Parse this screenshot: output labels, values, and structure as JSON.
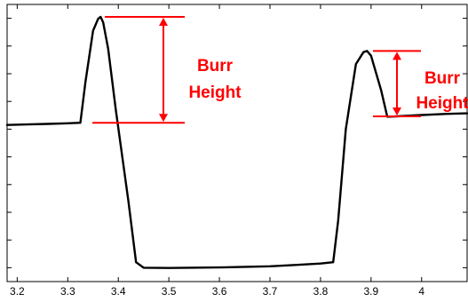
{
  "chart_data": {
    "type": "line",
    "title": "",
    "xlabel": "",
    "ylabel": "",
    "xlim": [
      3.18,
      4.09
    ],
    "ylim": [
      0,
      1
    ],
    "grid": false,
    "xticks": [
      {
        "value": 3.2,
        "label": "3.2"
      },
      {
        "value": 3.3,
        "label": "3.3"
      },
      {
        "value": 3.4,
        "label": "3.4"
      },
      {
        "value": 3.5,
        "label": "3.5"
      },
      {
        "value": 3.6,
        "label": "3.6"
      },
      {
        "value": 3.7,
        "label": "3.7"
      },
      {
        "value": 3.8,
        "label": "3.8"
      },
      {
        "value": 3.9,
        "label": "3.9"
      },
      {
        "value": 4.0,
        "label": "4"
      }
    ],
    "yticks": [
      0.05,
      0.15,
      0.25,
      0.35,
      0.45,
      0.55,
      0.65,
      0.75,
      0.85,
      0.95
    ],
    "series": [
      {
        "color": "#000000",
        "x": [
          3.18,
          3.22,
          3.26,
          3.3,
          3.325,
          3.335,
          3.35,
          3.36,
          3.365,
          3.37,
          3.38,
          3.395,
          3.42,
          3.435,
          3.45,
          3.5,
          3.6,
          3.7,
          3.75,
          3.8,
          3.825,
          3.835,
          3.85,
          3.87,
          3.885,
          3.892,
          3.9,
          3.92,
          3.932,
          3.95,
          4.0,
          4.05,
          4.09
        ],
        "y": [
          0.565,
          0.567,
          0.569,
          0.571,
          0.573,
          0.72,
          0.905,
          0.948,
          0.955,
          0.935,
          0.84,
          0.62,
          0.29,
          0.07,
          0.05,
          0.049,
          0.051,
          0.055,
          0.06,
          0.065,
          0.07,
          0.22,
          0.55,
          0.785,
          0.828,
          0.832,
          0.815,
          0.69,
          0.595,
          0.596,
          0.601,
          0.605,
          0.607
        ]
      }
    ],
    "annotations": [
      {
        "label_line1": "Burr",
        "label_line2": "Height",
        "peak_x": 3.365,
        "peak_y": 0.955,
        "base_y": 0.573,
        "color": "#ff0000"
      },
      {
        "label_line1": "Burr",
        "label_line2": "Height",
        "peak_x": 3.89,
        "peak_y": 0.832,
        "base_y": 0.596,
        "color": "#ff0000"
      }
    ]
  }
}
